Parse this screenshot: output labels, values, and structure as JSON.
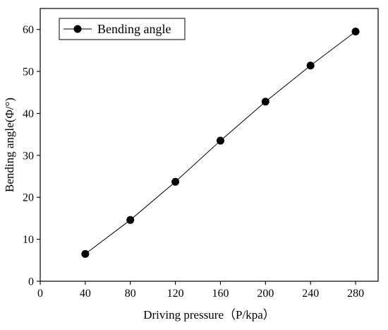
{
  "chart_data": {
    "type": "line",
    "xlabel": "Driving pressure（P/kpa）",
    "ylabel": "Bending angle(Φ/°)",
    "xlim": [
      0,
      300
    ],
    "ylim": [
      0,
      65
    ],
    "x_ticks": [
      0,
      40,
      80,
      120,
      160,
      200,
      240,
      280
    ],
    "y_ticks": [
      0,
      10,
      20,
      30,
      40,
      50,
      60
    ],
    "legend_position": "top-left",
    "grid": false,
    "series": [
      {
        "name": "Bending angle",
        "color": "#000000",
        "marker": "circle",
        "x": [
          40,
          80,
          120,
          160,
          200,
          240,
          280
        ],
        "values": [
          6.5,
          14.6,
          23.7,
          33.5,
          42.8,
          51.4,
          59.5
        ]
      }
    ]
  }
}
